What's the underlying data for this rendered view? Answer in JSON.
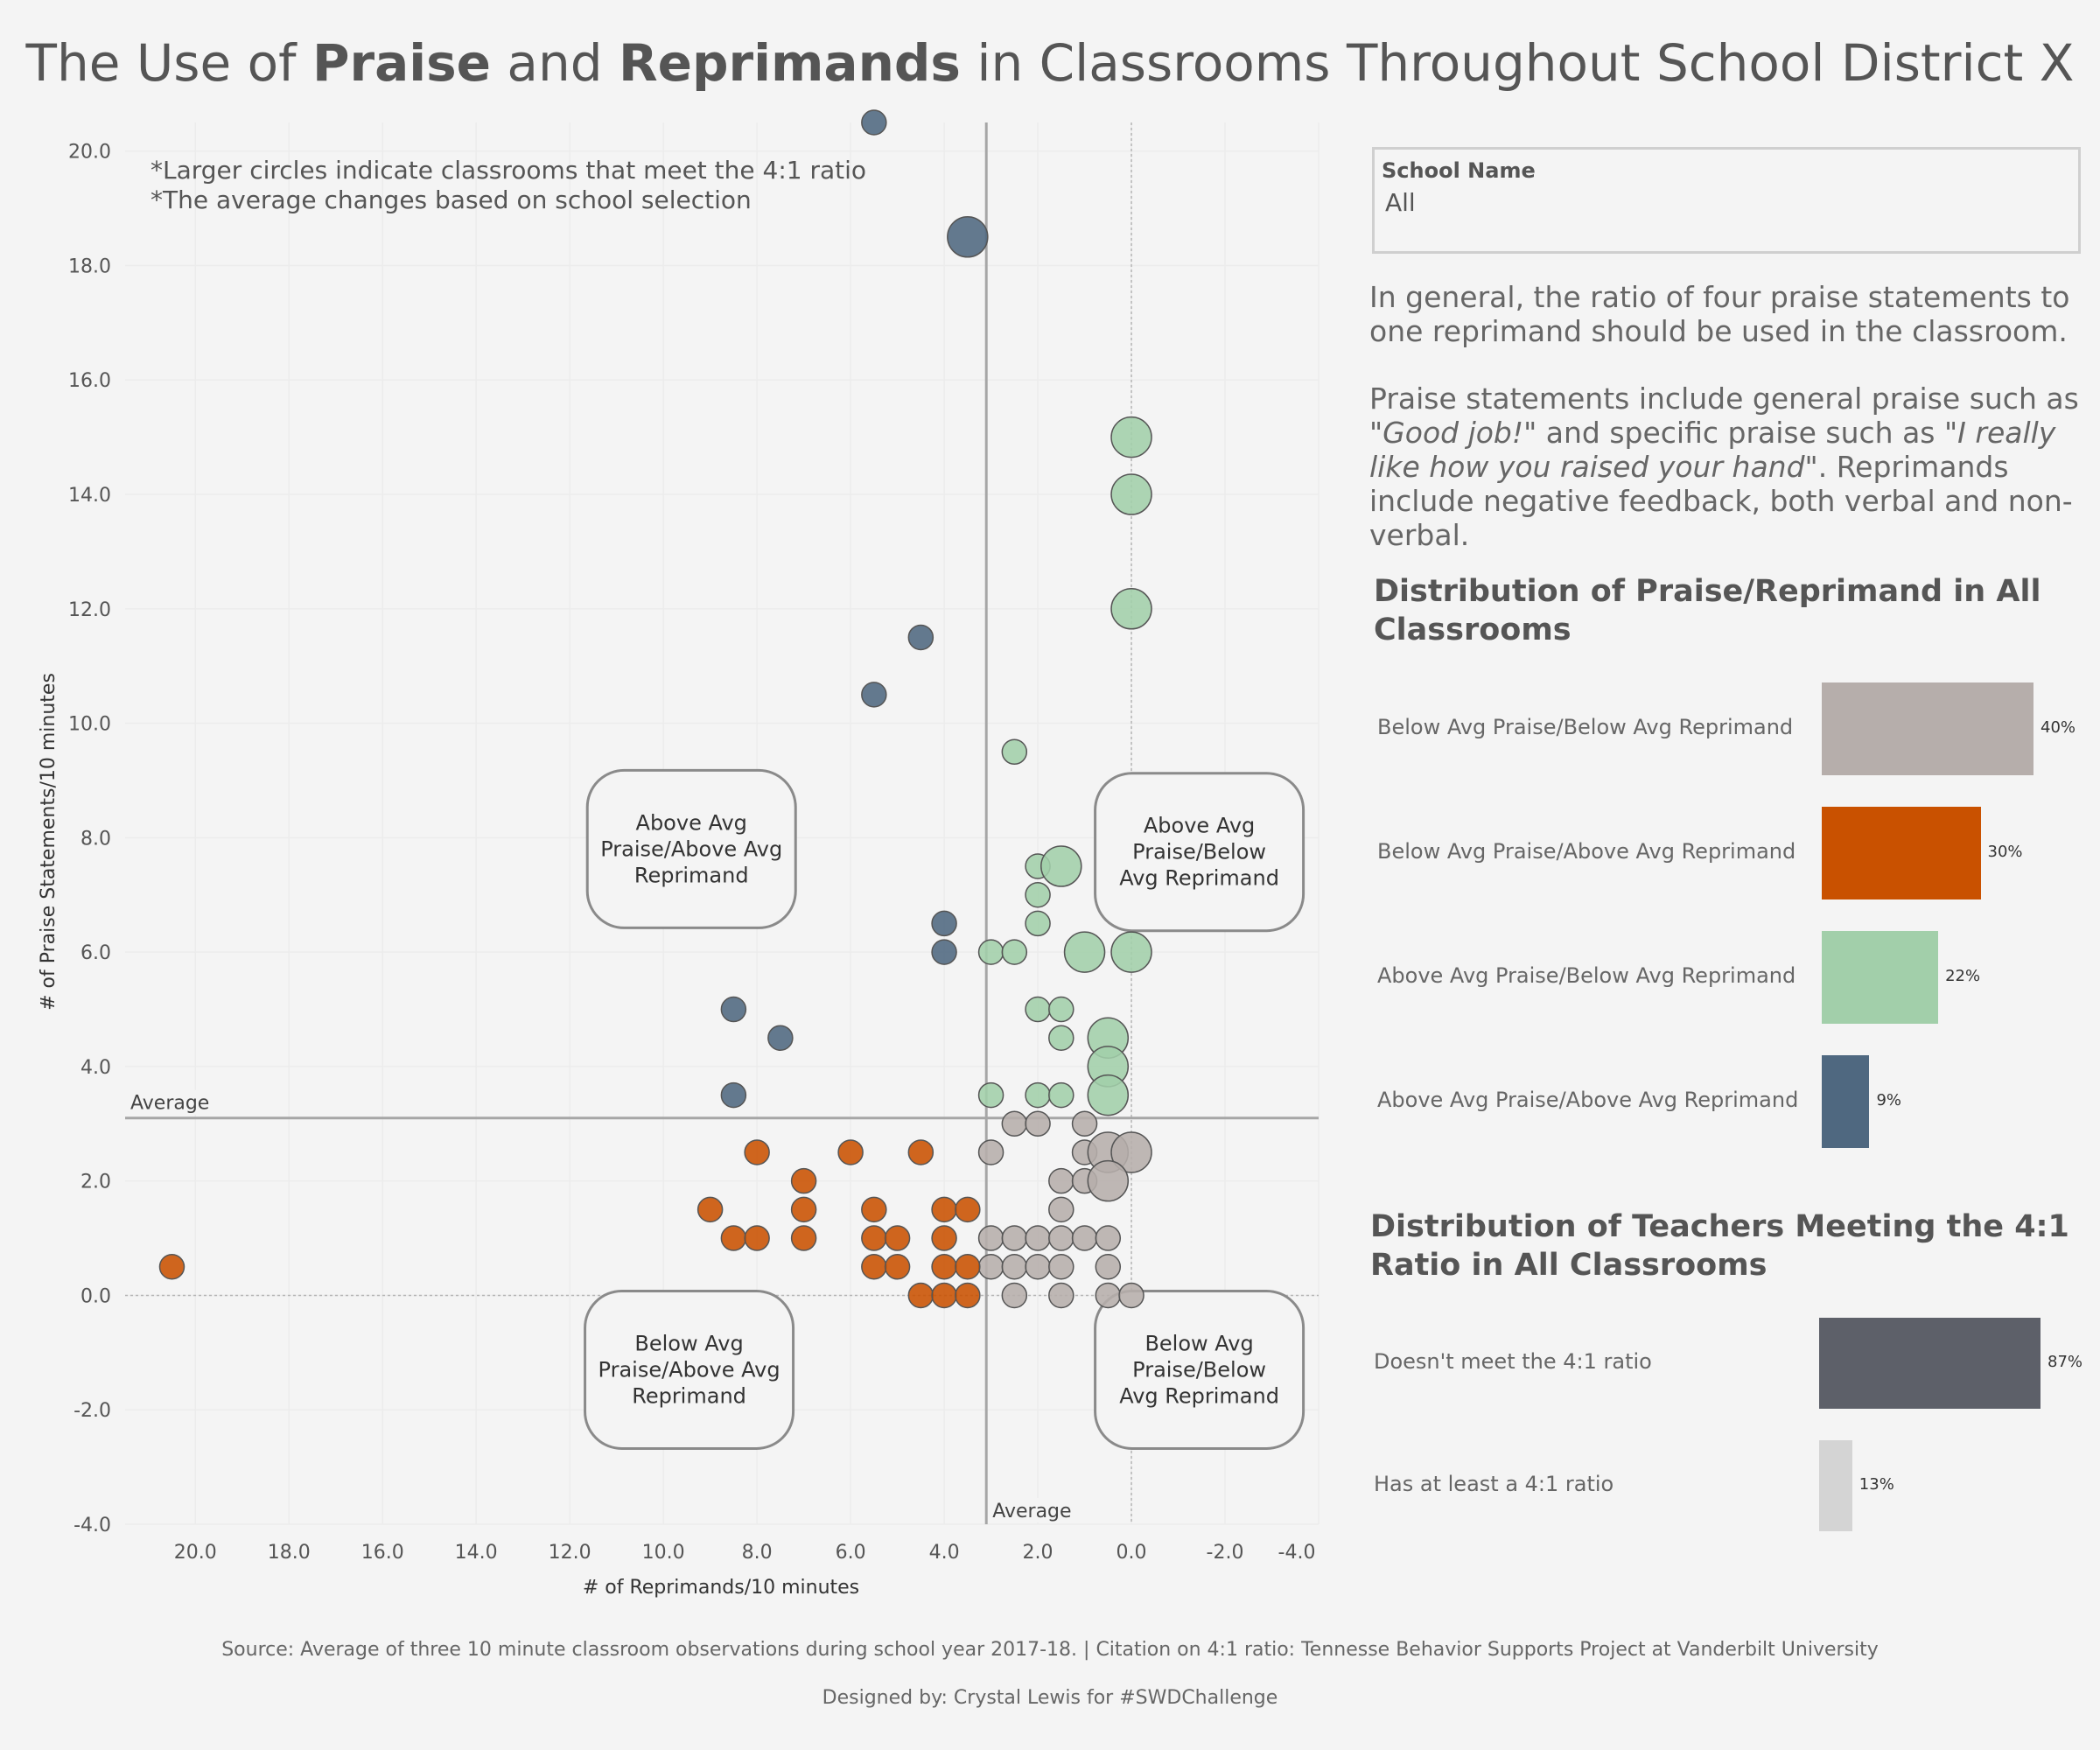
{
  "title": {
    "pre": "The Use of ",
    "bold1": "Praise",
    "mid": " and ",
    "bold2": "Reprimands",
    "post": " in Classrooms Throughout School District X"
  },
  "notes": [
    "*Larger circles indicate classrooms that meet the 4:1 ratio",
    "*The average changes based on school selection"
  ],
  "filter": {
    "label": "School Name",
    "value": "All"
  },
  "paragraph1": "In general, the ratio of four praise statements to one reprimand should be used in the classroom.",
  "paragraph2": {
    "a": "Praise statements include general praise such as ",
    "b": "\"Good job!\"",
    "c": " and specific praise such as ",
    "d": "\"I really like how you raised your hand\"",
    "e": ". Reprimands include negative feedback, both verbal and non-verbal."
  },
  "dist1": {
    "title": "Distribution of Praise/Reprimand in All Classrooms",
    "items": [
      {
        "label": "Below Avg Praise/Below Avg Reprimand",
        "value": 40,
        "display": "40%",
        "color": "#b6aeab"
      },
      {
        "label": "Below Avg Praise/Above Avg Reprimand",
        "value": 30,
        "display": "30%",
        "color": "#c95100"
      },
      {
        "label": "Above Avg Praise/Below Avg Reprimand",
        "value": 22,
        "display": "22%",
        "color": "#a2cfaa"
      },
      {
        "label": "Above Avg Praise/Above Avg Reprimand",
        "value": 9,
        "display": "9%",
        "color": "#4f6880"
      }
    ]
  },
  "dist2": {
    "title": "Distribution of Teachers Meeting the 4:1 Ratio in All Classrooms",
    "items": [
      {
        "label": "Doesn't meet the 4:1 ratio",
        "value": 87,
        "display": "87%",
        "color": "#5d6069"
      },
      {
        "label": "Has at least a 4:1 ratio",
        "value": 13,
        "display": "13%",
        "color": "#d4d4d4"
      }
    ]
  },
  "chart_data": {
    "type": "scatter",
    "xlabel": "# of Reprimands/10 minutes",
    "ylabel": "# of Praise Statements/10 minutes",
    "x_reversed": true,
    "xlim": [
      21.5,
      -4.0
    ],
    "ylim": [
      -4.0,
      20.5
    ],
    "xticks": [
      20.0,
      18.0,
      16.0,
      14.0,
      12.0,
      10.0,
      8.0,
      6.0,
      4.0,
      2.0,
      0.0,
      -2.0,
      -4.0
    ],
    "xtick_labels": [
      "20.0",
      "18.0",
      "16.0",
      "14.0",
      "12.0",
      "10.0",
      "8.0",
      "6.0",
      "4.0",
      "2.0",
      "0.0",
      "-2.0",
      "-4.0"
    ],
    "yticks": [
      20.0,
      18.0,
      16.0,
      14.0,
      12.0,
      10.0,
      8.0,
      6.0,
      4.0,
      2.0,
      0.0,
      -2.0,
      -4.0
    ],
    "ytick_labels": [
      "20.0",
      "18.0",
      "16.0",
      "14.0",
      "12.0",
      "10.0",
      "8.0",
      "6.0",
      "4.0",
      "2.0",
      "0.0",
      "-2.0",
      "-4.0"
    ],
    "average_x": 3.1,
    "average_y": 3.1,
    "average_label": "Average",
    "quadrant_labels": [
      {
        "text": [
          "Above Avg",
          "Praise/Above Avg",
          "Reprimand"
        ],
        "x": 9.4,
        "y": 7.8
      },
      {
        "text": [
          "Above Avg",
          "Praise/Below",
          "Avg Reprimand"
        ],
        "x": -1.45,
        "y": 7.75
      },
      {
        "text": [
          "Below Avg",
          "Praise/Above Avg",
          "Reprimand"
        ],
        "x": 9.45,
        "y": -1.3
      },
      {
        "text": [
          "Below Avg",
          "Praise/Below",
          "Avg Reprimand"
        ],
        "x": -1.45,
        "y": -1.3
      }
    ],
    "grid": true,
    "legend": "none",
    "colors": {
      "blue": "#4f6880",
      "orange": "#c95100",
      "green": "#a2cfaa",
      "gray": "#b6aeab"
    },
    "points": [
      {
        "x": 5.5,
        "y": 20.5,
        "c": "blue",
        "big": false
      },
      {
        "x": 3.5,
        "y": 18.5,
        "c": "blue",
        "big": true
      },
      {
        "x": 4.5,
        "y": 11.5,
        "c": "blue",
        "big": false
      },
      {
        "x": 5.5,
        "y": 10.5,
        "c": "blue",
        "big": false
      },
      {
        "x": 4.0,
        "y": 6.5,
        "c": "blue",
        "big": false
      },
      {
        "x": 4.0,
        "y": 6.0,
        "c": "blue",
        "big": false
      },
      {
        "x": 8.5,
        "y": 5.0,
        "c": "blue",
        "big": false
      },
      {
        "x": 7.5,
        "y": 4.5,
        "c": "blue",
        "big": false
      },
      {
        "x": 8.5,
        "y": 3.5,
        "c": "blue",
        "big": false
      },
      {
        "x": 0.0,
        "y": 15.0,
        "c": "green",
        "big": true
      },
      {
        "x": 0.0,
        "y": 14.0,
        "c": "green",
        "big": true
      },
      {
        "x": 0.0,
        "y": 12.0,
        "c": "green",
        "big": true
      },
      {
        "x": 2.5,
        "y": 9.5,
        "c": "green",
        "big": false
      },
      {
        "x": 2.0,
        "y": 7.5,
        "c": "green",
        "big": false
      },
      {
        "x": 1.5,
        "y": 7.5,
        "c": "green",
        "big": true
      },
      {
        "x": 2.0,
        "y": 7.0,
        "c": "green",
        "big": false
      },
      {
        "x": 2.0,
        "y": 6.5,
        "c": "green",
        "big": false
      },
      {
        "x": 3.0,
        "y": 6.0,
        "c": "green",
        "big": false
      },
      {
        "x": 2.5,
        "y": 6.0,
        "c": "green",
        "big": false
      },
      {
        "x": 1.0,
        "y": 6.0,
        "c": "green",
        "big": true
      },
      {
        "x": 0.0,
        "y": 6.0,
        "c": "green",
        "big": true
      },
      {
        "x": 2.0,
        "y": 5.0,
        "c": "green",
        "big": false
      },
      {
        "x": 1.5,
        "y": 5.0,
        "c": "green",
        "big": false
      },
      {
        "x": 1.5,
        "y": 4.5,
        "c": "green",
        "big": false
      },
      {
        "x": 0.5,
        "y": 4.5,
        "c": "green",
        "big": true
      },
      {
        "x": 0.5,
        "y": 4.0,
        "c": "green",
        "big": true
      },
      {
        "x": 0.5,
        "y": 3.5,
        "c": "green",
        "big": true
      },
      {
        "x": 3.0,
        "y": 3.5,
        "c": "green",
        "big": false
      },
      {
        "x": 2.0,
        "y": 3.5,
        "c": "green",
        "big": false
      },
      {
        "x": 1.5,
        "y": 3.5,
        "c": "green",
        "big": false
      },
      {
        "x": 2.5,
        "y": 3.0,
        "c": "gray",
        "big": false
      },
      {
        "x": 2.0,
        "y": 3.0,
        "c": "gray",
        "big": false
      },
      {
        "x": 1.0,
        "y": 3.0,
        "c": "gray",
        "big": false
      },
      {
        "x": 3.0,
        "y": 2.5,
        "c": "gray",
        "big": false
      },
      {
        "x": 1.0,
        "y": 2.5,
        "c": "gray",
        "big": false
      },
      {
        "x": 0.5,
        "y": 2.5,
        "c": "gray",
        "big": true
      },
      {
        "x": 0.0,
        "y": 2.5,
        "c": "gray",
        "big": true
      },
      {
        "x": 1.5,
        "y": 2.0,
        "c": "gray",
        "big": false
      },
      {
        "x": 1.0,
        "y": 2.0,
        "c": "gray",
        "big": false
      },
      {
        "x": 0.5,
        "y": 2.0,
        "c": "gray",
        "big": true
      },
      {
        "x": 1.5,
        "y": 1.5,
        "c": "gray",
        "big": false
      },
      {
        "x": 3.0,
        "y": 1.0,
        "c": "gray",
        "big": false
      },
      {
        "x": 2.5,
        "y": 1.0,
        "c": "gray",
        "big": false
      },
      {
        "x": 2.0,
        "y": 1.0,
        "c": "gray",
        "big": false
      },
      {
        "x": 1.5,
        "y": 1.0,
        "c": "gray",
        "big": false
      },
      {
        "x": 1.0,
        "y": 1.0,
        "c": "gray",
        "big": false
      },
      {
        "x": 0.5,
        "y": 1.0,
        "c": "gray",
        "big": false
      },
      {
        "x": 3.0,
        "y": 0.5,
        "c": "gray",
        "big": false
      },
      {
        "x": 2.5,
        "y": 0.5,
        "c": "gray",
        "big": false
      },
      {
        "x": 2.0,
        "y": 0.5,
        "c": "gray",
        "big": false
      },
      {
        "x": 1.5,
        "y": 0.5,
        "c": "gray",
        "big": false
      },
      {
        "x": 0.5,
        "y": 0.5,
        "c": "gray",
        "big": false
      },
      {
        "x": 2.5,
        "y": 0.0,
        "c": "gray",
        "big": false
      },
      {
        "x": 1.5,
        "y": 0.0,
        "c": "gray",
        "big": false
      },
      {
        "x": 0.5,
        "y": 0.0,
        "c": "gray",
        "big": false
      },
      {
        "x": 0.0,
        "y": 0.0,
        "c": "gray",
        "big": false
      },
      {
        "x": 8.0,
        "y": 2.5,
        "c": "orange",
        "big": false
      },
      {
        "x": 6.0,
        "y": 2.5,
        "c": "orange",
        "big": false
      },
      {
        "x": 4.5,
        "y": 2.5,
        "c": "orange",
        "big": false
      },
      {
        "x": 7.0,
        "y": 2.0,
        "c": "orange",
        "big": false
      },
      {
        "x": 9.0,
        "y": 1.5,
        "c": "orange",
        "big": false
      },
      {
        "x": 7.0,
        "y": 1.5,
        "c": "orange",
        "big": false
      },
      {
        "x": 5.5,
        "y": 1.5,
        "c": "orange",
        "big": false
      },
      {
        "x": 4.0,
        "y": 1.5,
        "c": "orange",
        "big": false
      },
      {
        "x": 3.5,
        "y": 1.5,
        "c": "orange",
        "big": false
      },
      {
        "x": 8.5,
        "y": 1.0,
        "c": "orange",
        "big": false
      },
      {
        "x": 8.0,
        "y": 1.0,
        "c": "orange",
        "big": false
      },
      {
        "x": 7.0,
        "y": 1.0,
        "c": "orange",
        "big": false
      },
      {
        "x": 5.5,
        "y": 1.0,
        "c": "orange",
        "big": false
      },
      {
        "x": 5.0,
        "y": 1.0,
        "c": "orange",
        "big": false
      },
      {
        "x": 4.0,
        "y": 1.0,
        "c": "orange",
        "big": false
      },
      {
        "x": 20.5,
        "y": 0.5,
        "c": "orange",
        "big": false
      },
      {
        "x": 5.5,
        "y": 0.5,
        "c": "orange",
        "big": false
      },
      {
        "x": 5.0,
        "y": 0.5,
        "c": "orange",
        "big": false
      },
      {
        "x": 4.0,
        "y": 0.5,
        "c": "orange",
        "big": false
      },
      {
        "x": 3.5,
        "y": 0.5,
        "c": "orange",
        "big": false
      },
      {
        "x": 4.5,
        "y": 0.0,
        "c": "orange",
        "big": false
      },
      {
        "x": 4.0,
        "y": 0.0,
        "c": "orange",
        "big": false
      },
      {
        "x": 3.5,
        "y": 0.0,
        "c": "orange",
        "big": false
      }
    ]
  },
  "footer": {
    "source": "Source: Average of three 10 minute classroom observations during school year 2017-18. | Citation on 4:1 ratio: Tennesse Behavior Supports Project at Vanderbilt University",
    "designer": "Designed by: Crystal Lewis for #SWDChallenge"
  }
}
